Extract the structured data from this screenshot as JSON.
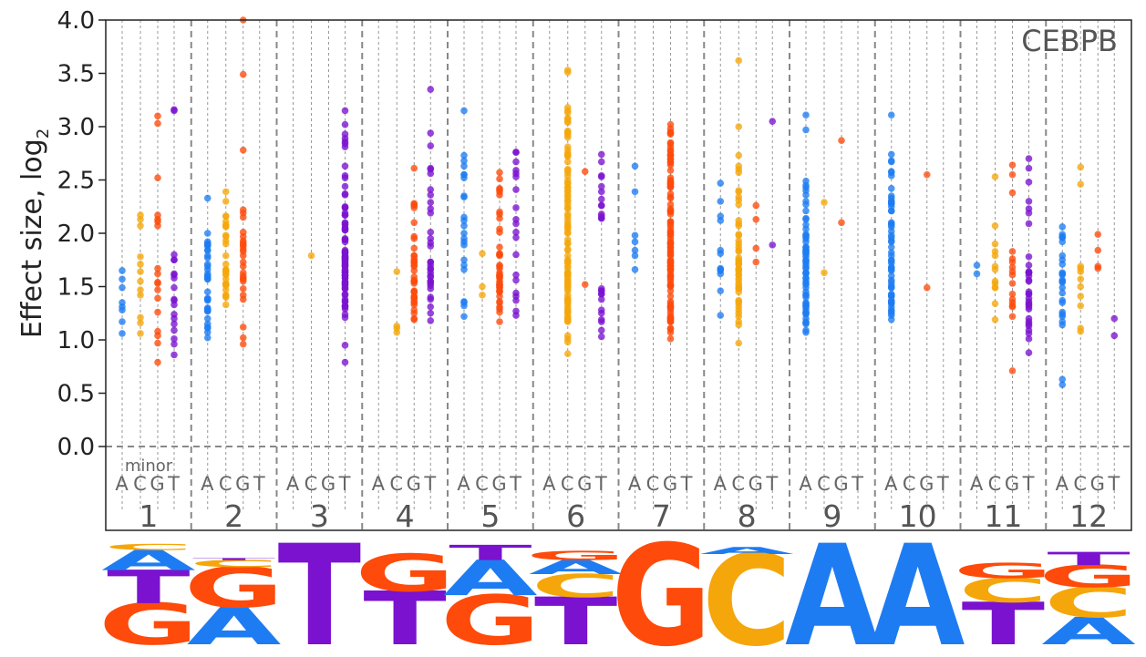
{
  "chart_data": {
    "type": "scatter",
    "badge": "CEBPB",
    "ylabel": "Effect size, log",
    "ylabel_subscript": "2",
    "ylim": [
      0,
      4
    ],
    "yticks": [
      "0.0",
      "0.5",
      "1.0",
      "1.5",
      "2.0",
      "2.5",
      "3.0",
      "3.5",
      "4.0"
    ],
    "bases": [
      "A",
      "C",
      "G",
      "T"
    ],
    "minor_label": "minor",
    "colors": {
      "A": "#1e7cf2",
      "C": "#f5a60a",
      "G": "#fe4a0a",
      "T": "#7a12cf"
    },
    "grid": "dashed vertical per base, dashed horizontal at 0",
    "positions": [
      {
        "label": "1",
        "A": [
          1.35,
          1.06,
          1.28,
          1.49,
          1.57,
          1.17,
          1.65,
          1.31
        ],
        "C": [
          1.47,
          1.64,
          2.13,
          1.71,
          1.78,
          1.06,
          2.17,
          1.55,
          1.42,
          2.07,
          1.16,
          1.21
        ],
        "G": [
          1.62,
          1.04,
          1.39,
          2.07,
          3.03,
          1.26,
          2.13,
          2.17,
          0.79,
          1.54,
          2.11,
          1.08,
          2.52,
          1.67,
          3.1,
          1.53,
          0.97,
          1.47
        ],
        "T": [
          1.38,
          1.61,
          1.58,
          1.09,
          1.24,
          1.75,
          0.96,
          0.86,
          1.01,
          1.49,
          1.2,
          1.75,
          3.15,
          1.15,
          1.33,
          1.8,
          1.62,
          1.37,
          3.16
        ]
      },
      {
        "label": "2",
        "A": [
          2.0,
          1.38,
          1.69,
          1.11,
          1.02,
          1.12,
          1.38,
          2.33,
          1.3,
          1.88,
          1.89,
          1.07,
          1.62,
          1.57,
          1.39,
          1.28,
          1.2,
          1.66,
          1.84,
          1.37,
          1.57,
          1.92,
          1.6,
          1.45,
          1.29,
          1.9,
          1.59,
          1.77,
          1.9,
          1.79,
          1.27,
          1.84,
          1.71,
          1.15,
          1.27
        ],
        "C": [
          1.97,
          1.51,
          1.71,
          1.52,
          1.52,
          2.3,
          2.07,
          2.16,
          1.93,
          1.47,
          1.41,
          1.33,
          2.08,
          1.4,
          1.65,
          1.98,
          1.61,
          1.57,
          2.06,
          1.65,
          1.64,
          1.62,
          2.39,
          2.16,
          1.53,
          2.11,
          1.42,
          1.79,
          1.66,
          1.9
        ],
        "G": [
          1.83,
          1.55,
          1.6,
          3.49,
          1.73,
          1.02,
          1.58,
          1.79,
          1.69,
          1.91,
          1.63,
          2.01,
          2.19,
          2.78,
          1.38,
          1.93,
          1.85,
          4.0,
          1.48,
          2.15,
          1.57,
          2.22,
          1.89,
          1.88,
          1.42,
          1.12,
          0.96,
          1.97
        ],
        "T": []
      },
      {
        "label": "3",
        "A": [],
        "C": [
          1.79
        ],
        "G": [],
        "T": [
          1.65,
          1.5,
          2.86,
          1.76,
          2.1,
          1.55,
          1.95,
          1.69,
          2.17,
          2.24,
          1.83,
          1.74,
          1.36,
          1.76,
          1.32,
          1.72,
          1.84,
          2.44,
          1.42,
          2.17,
          1.48,
          1.21,
          2.36,
          1.74,
          1.61,
          1.71,
          1.78,
          2.89,
          1.77,
          1.36,
          0.95,
          1.81,
          2.03,
          2.52,
          0.79,
          2.37,
          1.54,
          1.43,
          2.25,
          2.05,
          1.78,
          1.58,
          1.63,
          3.15,
          1.79,
          2.24,
          1.32,
          1.66,
          2.03,
          2.19,
          1.94,
          2.81,
          2.63,
          1.58,
          1.64,
          1.69,
          2.09,
          1.52,
          2.54,
          2.84,
          1.82,
          1.94,
          1.7,
          1.38,
          1.63,
          1.53,
          1.92,
          1.24,
          1.31,
          2.93,
          2.05,
          1.6,
          1.82,
          1.29,
          1.76,
          2.08,
          1.6,
          3.02,
          1.52,
          1.48
        ]
      },
      {
        "label": "4",
        "A": [],
        "C": [
          1.64,
          1.11,
          1.07,
          1.13
        ],
        "G": [
          1.19,
          1.25,
          1.39,
          1.97,
          1.65,
          2.28,
          1.76,
          1.55,
          1.28,
          1.41,
          1.56,
          1.59,
          1.4,
          1.45,
          1.79,
          1.73,
          1.7,
          1.53,
          1.95,
          2.27,
          1.45,
          1.2,
          2.24,
          2.1,
          2.61,
          1.55,
          1.69,
          1.46,
          1.74,
          1.72,
          1.86,
          1.33,
          1.79,
          1.36,
          1.35,
          1.39,
          2.26
        ],
        "T": [
          1.91,
          2.6,
          1.55,
          2.41,
          2.36,
          2.56,
          1.25,
          2.29,
          1.38,
          1.53,
          1.88,
          1.7,
          1.67,
          1.63,
          1.66,
          1.18,
          1.4,
          1.95,
          2.61,
          1.51,
          2.94,
          1.59,
          1.6,
          2.19,
          1.31,
          1.73,
          1.55,
          1.48,
          2.01,
          3.35,
          2.82,
          1.73,
          2.23
        ]
      },
      {
        "label": "5",
        "A": [
          1.32,
          3.15,
          1.92,
          2.15,
          2.12,
          2.35,
          1.75,
          2.34,
          2.68,
          2.55,
          1.36,
          2.55,
          2.52,
          1.35,
          1.66,
          1.22,
          2.73,
          1.89,
          2.07,
          1.7,
          2.0,
          2.63,
          1.95
        ],
        "C": [
          1.81,
          1.5,
          1.42
        ],
        "G": [
          2.04,
          2.14,
          1.61,
          1.7,
          1.45,
          1.46,
          2.36,
          1.49,
          1.31,
          1.29,
          1.41,
          2.18,
          1.6,
          1.52,
          1.55,
          1.79,
          1.17,
          1.51,
          1.51,
          2.42,
          1.81,
          2.01,
          1.69,
          1.8,
          1.59,
          2.2,
          2.39,
          1.8,
          1.58,
          1.26,
          1.53,
          2.51,
          1.67,
          2.57,
          2.41,
          1.35,
          1.87,
          1.46,
          1.6,
          1.36,
          1.63,
          1.49
        ],
        "T": [
          2.76,
          1.23,
          2.13,
          2.24,
          2.59,
          1.41,
          1.61,
          2.41,
          1.44,
          2.67,
          1.37,
          2.76,
          1.56,
          2.56,
          1.27,
          2.53,
          1.8,
          2.01,
          1.96,
          2.09
        ]
      },
      {
        "label": "6",
        "A": [],
        "C": [
          2.95,
          1.73,
          3.04,
          1.48,
          2.73,
          2.5,
          1.27,
          2.31,
          3.05,
          1.2,
          2.47,
          0.98,
          1.29,
          3.51,
          2.01,
          1.61,
          3.53,
          1.74,
          1.18,
          2.72,
          1.63,
          1.04,
          2.06,
          1.67,
          1.85,
          2.75,
          1.5,
          1.54,
          3.07,
          1.79,
          1.9,
          1.42,
          1.69,
          1.61,
          3.13,
          2.96,
          1.84,
          1.23,
          1.56,
          2.18,
          1.59,
          2.43,
          1.01,
          2.43,
          1.51,
          1.72,
          1.31,
          2.24,
          2.04,
          2.6,
          2.57,
          2.47,
          2.3,
          1.62,
          1.26,
          1.19,
          2.67,
          2.4,
          1.63,
          1.56,
          2.36,
          1.39,
          1.91,
          2.39,
          3.18,
          1.53,
          1.75,
          1.46,
          2.16,
          1.63,
          1.34,
          3.15,
          2.94,
          2.34,
          2.27,
          1.26,
          2.08,
          1.37,
          3.08,
          1.37,
          2.74,
          2.92,
          2.9,
          2.54,
          2.59,
          1.94,
          2.13,
          2.06,
          1.21,
          2.1,
          2.0,
          2.81,
          1.6,
          1.35,
          1.38,
          0.87,
          1.17,
          2.78,
          2.23
        ],
        "G": [
          2.58,
          1.52
        ],
        "T": [
          2.14,
          2.39,
          2.26,
          2.54,
          2.53,
          1.46,
          1.25,
          1.17,
          1.43,
          2.44,
          2.74,
          1.28,
          1.48,
          2.18,
          1.46,
          2.14,
          1.38,
          1.03,
          2.67,
          1.09,
          1.43,
          2.26,
          2.32,
          2.16,
          1.19
        ]
      },
      {
        "label": "7",
        "A": [
          1.98,
          2.39,
          1.92,
          1.66,
          1.84,
          1.79,
          2.63
        ],
        "C": [],
        "G": [
          2.04,
          1.74,
          1.32,
          2.07,
          1.46,
          1.22,
          1.92,
          2.46,
          1.17,
          2.77,
          1.82,
          1.73,
          2.34,
          1.79,
          1.83,
          1.51,
          1.41,
          1.2,
          2.11,
          2.69,
          1.59,
          1.7,
          1.9,
          2.44,
          2.47,
          1.25,
          2.5,
          2.66,
          2.73,
          1.28,
          1.57,
          1.17,
          1.01,
          2.67,
          2.98,
          2.43,
          2.09,
          1.87,
          1.31,
          2.81,
          2.93,
          2.64,
          2.37,
          2.46,
          1.72,
          1.91,
          1.36,
          2.48,
          1.21,
          2.2,
          1.95,
          1.75,
          2.11,
          2.01,
          2.21,
          2.94,
          3.02,
          1.66,
          2.85,
          2.01,
          1.11,
          1.61,
          2.33,
          1.67,
          2.48,
          1.07,
          2.7,
          1.2,
          1.66,
          2.84,
          1.98,
          1.72,
          1.9,
          2.73,
          1.69,
          2.44,
          2.27,
          2.59,
          2.21,
          2.23,
          1.1,
          2.95,
          1.18,
          2.52,
          2.44,
          1.34,
          1.69,
          2.18,
          1.3,
          1.85,
          1.51,
          1.5,
          1.99,
          2.78,
          1.87,
          1.6,
          1.55,
          1.31,
          1.52,
          1.19,
          1.64,
          1.8,
          2.74
        ],
        "T": []
      },
      {
        "label": "8",
        "A": [
          1.62,
          2.12,
          2.47,
          1.67,
          2.3,
          1.81,
          1.66,
          1.23,
          1.84,
          2.16,
          1.65,
          1.46
        ],
        "C": [
          1.22,
          1.14,
          1.45,
          1.61,
          1.31,
          1.77,
          1.66,
          1.34,
          1.49,
          2.27,
          1.48,
          1.71,
          2.4,
          1.58,
          2.07,
          1.36,
          3.62,
          1.61,
          1.37,
          1.53,
          0.97,
          2.12,
          2.73,
          2.34,
          2.6,
          1.75,
          2.63,
          1.64,
          1.98,
          1.72,
          2.39,
          3.0,
          1.87,
          1.56,
          1.25,
          1.84,
          1.51,
          1.93,
          1.83,
          2.57,
          1.67,
          1.17,
          1.9,
          2.31,
          1.48,
          2.09,
          1.28,
          1.74,
          1.99,
          1.71,
          1.66
        ],
        "G": [
          2.26,
          1.86,
          1.73,
          2.13
        ],
        "T": [
          3.05,
          1.89
        ]
      },
      {
        "label": "9",
        "A": [
          1.99,
          2.3,
          1.97,
          1.83,
          1.4,
          1.24,
          2.49,
          1.63,
          2.14,
          1.72,
          1.45,
          1.68,
          1.58,
          1.17,
          1.25,
          2.97,
          2.43,
          1.29,
          1.82,
          1.32,
          1.42,
          1.81,
          1.26,
          1.33,
          1.87,
          1.92,
          3.11,
          1.78,
          1.98,
          1.8,
          1.63,
          1.31,
          1.15,
          2.04,
          1.74,
          2.08,
          1.62,
          1.74,
          1.53,
          2.45,
          1.84,
          1.55,
          1.7,
          2.4,
          1.09,
          2.21,
          1.35,
          1.49,
          1.95,
          2.36,
          1.75,
          1.58,
          1.16,
          1.67,
          2.27,
          1.34,
          1.52,
          1.87,
          1.83,
          1.07,
          2.13,
          1.85,
          1.42,
          1.2,
          1.26
        ],
        "C": [
          2.29,
          1.63
        ],
        "G": [
          2.1,
          2.87
        ],
        "T": []
      },
      {
        "label": "10",
        "A": [
          2.54,
          2.3,
          2.1,
          2.28,
          1.34,
          2.21,
          2.58,
          2.67,
          1.23,
          1.79,
          1.75,
          1.36,
          1.51,
          1.72,
          2.57,
          2.06,
          1.82,
          1.92,
          2.68,
          1.42,
          2.42,
          1.41,
          1.56,
          1.31,
          2.28,
          3.11,
          1.41,
          1.96,
          1.43,
          2.02,
          1.87,
          1.98,
          1.37,
          2.28,
          1.68,
          1.28,
          2.09,
          1.19,
          2.74,
          1.35,
          2.21,
          2.25,
          2.33,
          1.65,
          1.74,
          1.93,
          1.68,
          1.66,
          1.35,
          1.27,
          1.25,
          1.49,
          1.49,
          1.6,
          2.3,
          2.08,
          1.54,
          2.35
        ],
        "C": [],
        "G": [
          1.49,
          2.55
        ],
        "T": []
      },
      {
        "label": "11",
        "A": [
          1.62,
          1.7
        ],
        "C": [
          1.19,
          1.53,
          1.83,
          1.9,
          1.34,
          1.55,
          1.69,
          1.49,
          2.53,
          2.07,
          1.79,
          1.49,
          1.66
        ],
        "G": [
          1.61,
          1.68,
          1.73,
          2.38,
          1.35,
          2.55,
          1.38,
          2.64,
          1.64,
          1.32,
          0.71,
          1.76,
          1.83,
          1.43,
          1.53,
          1.31,
          1.22
        ],
        "T": [
          1.63,
          2.3,
          1.33,
          1.45,
          1.78,
          1.6,
          2.09,
          1.43,
          1.15,
          1.34,
          2.23,
          1.01,
          2.7,
          1.17,
          1.7,
          1.55,
          1.31,
          1.43,
          1.56,
          2.19,
          1.13,
          1.2,
          1.29,
          2.48,
          1.09,
          2.61,
          0.88,
          1.39,
          1.64,
          1.63,
          1.36,
          1.06,
          1.63
        ]
      },
      {
        "label": "12",
        "A": [
          0.58,
          1.96,
          1.22,
          1.24,
          1.61,
          1.55,
          1.79,
          1.35,
          1.96,
          1.26,
          1.63,
          1.14,
          1.92,
          1.17,
          1.37,
          1.62,
          2.06,
          1.97,
          1.99,
          1.56,
          1.75,
          1.54,
          1.44,
          1.71,
          0.63,
          1.49
        ],
        "C": [
          1.41,
          1.69,
          1.32,
          1.57,
          1.5,
          1.08,
          1.67,
          2.46,
          1.11,
          2.62,
          1.64
        ],
        "G": [
          1.69,
          1.84,
          1.99,
          1.67
        ],
        "T": [
          1.2,
          1.04
        ]
      }
    ],
    "logo": [
      [
        {
          "l": "G",
          "h": 0.41
        },
        {
          "l": "T",
          "h": 0.33
        },
        {
          "l": "A",
          "h": 0.2
        },
        {
          "l": "C",
          "h": 0.06
        }
      ],
      [
        {
          "l": "A",
          "h": 0.37
        },
        {
          "l": "G",
          "h": 0.4
        },
        {
          "l": "C",
          "h": 0.07
        },
        {
          "l": "T",
          "h": 0.02
        }
      ],
      [
        {
          "l": "T",
          "h": 1.0
        }
      ],
      [
        {
          "l": "T",
          "h": 0.53
        },
        {
          "l": "G",
          "h": 0.37
        }
      ],
      [
        {
          "l": "G",
          "h": 0.49
        },
        {
          "l": "A",
          "h": 0.35
        },
        {
          "l": "T",
          "h": 0.15
        }
      ],
      [
        {
          "l": "T",
          "h": 0.47
        },
        {
          "l": "C",
          "h": 0.23
        },
        {
          "l": "A",
          "h": 0.14
        },
        {
          "l": "G",
          "h": 0.09
        }
      ],
      [
        {
          "l": "G",
          "h": 1.0
        }
      ],
      [
        {
          "l": "C",
          "h": 0.9
        },
        {
          "l": "A",
          "h": 0.07
        }
      ],
      [
        {
          "l": "A",
          "h": 1.0
        }
      ],
      [
        {
          "l": "A",
          "h": 1.0
        }
      ],
      [
        {
          "l": "T",
          "h": 0.42
        },
        {
          "l": "C",
          "h": 0.24
        },
        {
          "l": "G",
          "h": 0.15
        }
      ],
      [
        {
          "l": "A",
          "h": 0.27
        },
        {
          "l": "C",
          "h": 0.3
        },
        {
          "l": "G",
          "h": 0.22
        },
        {
          "l": "T",
          "h": 0.13
        }
      ]
    ]
  }
}
